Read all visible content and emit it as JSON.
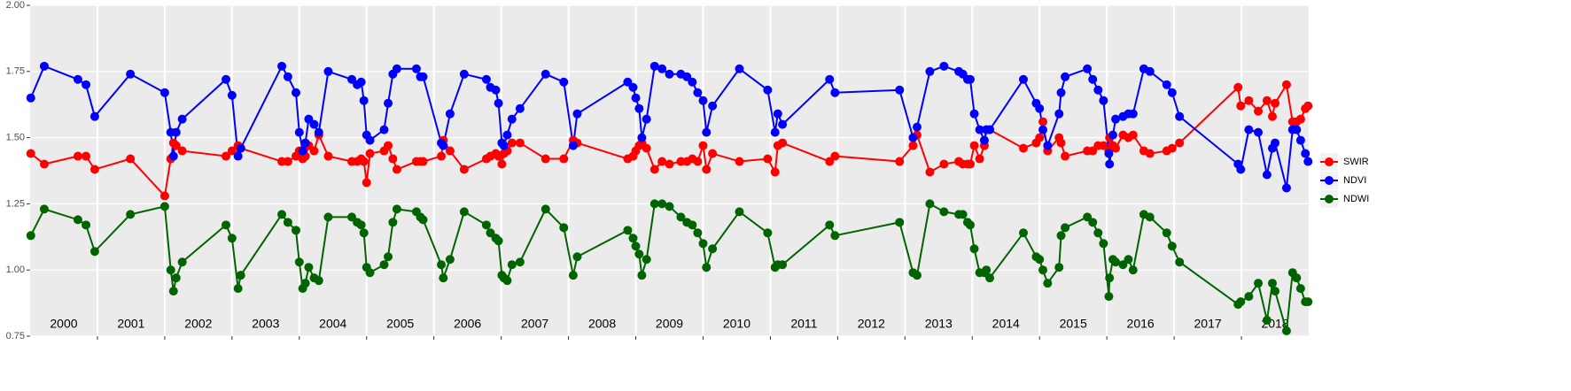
{
  "chart_data": {
    "type": "line",
    "x": [
      2000.01,
      2000.21,
      2000.71,
      2000.83,
      2000.96,
      2001.49,
      2002.0,
      2002.09,
      2002.13,
      2002.17,
      2002.26,
      2002.91,
      2003.0,
      2003.09,
      2003.13,
      2003.74,
      2003.83,
      2003.95,
      2004.0,
      2004.05,
      2004.09,
      2004.14,
      2004.22,
      2004.29,
      2004.43,
      2004.78,
      2004.86,
      2004.92,
      2004.96,
      2005.0,
      2005.05,
      2005.26,
      2005.32,
      2005.39,
      2005.45,
      2005.74,
      2005.8,
      2005.84,
      2006.11,
      2006.14,
      2006.24,
      2006.45,
      2006.78,
      2006.84,
      2006.92,
      2006.96,
      2007.01,
      2007.04,
      2007.09,
      2007.16,
      2007.28,
      2007.66,
      2007.93,
      2008.07,
      2008.13,
      2008.88,
      2008.96,
      2009.0,
      2009.05,
      2009.09,
      2009.16,
      2009.28,
      2009.39,
      2009.5,
      2009.67,
      2009.76,
      2009.84,
      2009.92,
      2010.0,
      2010.05,
      2010.14,
      2010.54,
      2010.96,
      2011.07,
      2011.11,
      2011.18,
      2011.88,
      2011.96,
      2012.92,
      2013.12,
      2013.18,
      2013.37,
      2013.58,
      2013.8,
      2013.86,
      2013.93,
      2013.97,
      2014.03,
      2014.11,
      2014.18,
      2014.21,
      2014.26,
      2014.76,
      2014.95,
      2015.0,
      2015.05,
      2015.12,
      2015.29,
      2015.32,
      2015.38,
      2015.71,
      2015.79,
      2015.87,
      2015.95,
      2016.03,
      2016.04,
      2016.09,
      2016.13,
      2016.24,
      2016.32,
      2016.39,
      2016.55,
      2016.64,
      2016.89,
      2016.97,
      2017.08,
      2017.95,
      2017.99,
      2018.11,
      2018.25,
      2018.38,
      2018.46,
      2018.5,
      2018.67,
      2018.76,
      2018.82,
      2018.88,
      2018.95,
      2018.99
    ],
    "series": [
      {
        "name": "SWIR",
        "color": "#ff0000",
        "values": [
          1.44,
          1.4,
          1.43,
          1.43,
          1.38,
          1.42,
          1.28,
          1.42,
          1.48,
          1.47,
          1.45,
          1.43,
          1.45,
          1.47,
          1.46,
          1.41,
          1.41,
          1.43,
          1.45,
          1.42,
          1.43,
          1.47,
          1.45,
          1.51,
          1.43,
          1.41,
          1.41,
          1.42,
          1.41,
          1.33,
          1.44,
          1.45,
          1.47,
          1.42,
          1.38,
          1.41,
          1.41,
          1.41,
          1.43,
          1.49,
          1.45,
          1.38,
          1.42,
          1.43,
          1.44,
          1.43,
          1.4,
          1.44,
          1.45,
          1.48,
          1.48,
          1.42,
          1.42,
          1.49,
          1.48,
          1.42,
          1.43,
          1.45,
          1.47,
          1.48,
          1.46,
          1.38,
          1.41,
          1.4,
          1.41,
          1.41,
          1.42,
          1.41,
          1.47,
          1.38,
          1.44,
          1.41,
          1.42,
          1.37,
          1.47,
          1.48,
          1.41,
          1.43,
          1.41,
          1.47,
          1.51,
          1.37,
          1.4,
          1.41,
          1.4,
          1.4,
          1.4,
          1.47,
          1.42,
          1.47,
          1.53,
          1.53,
          1.46,
          1.48,
          1.5,
          1.56,
          1.45,
          1.5,
          1.48,
          1.43,
          1.45,
          1.45,
          1.47,
          1.47,
          1.45,
          1.5,
          1.47,
          1.46,
          1.51,
          1.5,
          1.51,
          1.45,
          1.44,
          1.45,
          1.46,
          1.48,
          1.69,
          1.62,
          1.64,
          1.6,
          1.64,
          1.58,
          1.63,
          1.7,
          1.56,
          1.56,
          1.57,
          1.61,
          1.62
        ]
      },
      {
        "name": "NDVI",
        "color": "#0000ff",
        "values": [
          1.65,
          1.77,
          1.72,
          1.7,
          1.58,
          1.74,
          1.67,
          1.52,
          1.43,
          1.52,
          1.57,
          1.72,
          1.66,
          1.43,
          1.46,
          1.77,
          1.73,
          1.67,
          1.52,
          1.45,
          1.48,
          1.57,
          1.55,
          1.52,
          1.75,
          1.72,
          1.7,
          1.71,
          1.64,
          1.51,
          1.49,
          1.53,
          1.63,
          1.74,
          1.76,
          1.76,
          1.73,
          1.73,
          1.48,
          1.47,
          1.59,
          1.74,
          1.72,
          1.69,
          1.68,
          1.63,
          1.48,
          1.47,
          1.51,
          1.57,
          1.61,
          1.74,
          1.71,
          1.47,
          1.59,
          1.71,
          1.69,
          1.65,
          1.61,
          1.5,
          1.57,
          1.77,
          1.76,
          1.74,
          1.74,
          1.73,
          1.71,
          1.67,
          1.64,
          1.52,
          1.62,
          1.76,
          1.68,
          1.52,
          1.59,
          1.55,
          1.72,
          1.67,
          1.68,
          1.5,
          1.54,
          1.75,
          1.77,
          1.75,
          1.74,
          1.72,
          1.72,
          1.59,
          1.53,
          1.49,
          1.53,
          1.53,
          1.72,
          1.63,
          1.61,
          1.53,
          1.47,
          1.59,
          1.67,
          1.73,
          1.76,
          1.72,
          1.68,
          1.64,
          1.44,
          1.4,
          1.51,
          1.57,
          1.58,
          1.59,
          1.59,
          1.76,
          1.75,
          1.7,
          1.67,
          1.58,
          1.4,
          1.38,
          1.53,
          1.52,
          1.36,
          1.46,
          1.48,
          1.31,
          1.53,
          1.53,
          1.49,
          1.44,
          1.41
        ]
      },
      {
        "name": "NDWI",
        "color": "#006400",
        "values": [
          1.13,
          1.23,
          1.19,
          1.17,
          1.07,
          1.21,
          1.24,
          1.0,
          0.92,
          0.97,
          1.03,
          1.17,
          1.12,
          0.93,
          0.98,
          1.21,
          1.18,
          1.15,
          1.03,
          0.93,
          0.95,
          1.01,
          0.97,
          0.96,
          1.2,
          1.2,
          1.18,
          1.17,
          1.14,
          1.01,
          0.99,
          1.02,
          1.05,
          1.18,
          1.23,
          1.22,
          1.2,
          1.19,
          1.02,
          0.97,
          1.04,
          1.22,
          1.17,
          1.14,
          1.12,
          1.11,
          0.98,
          0.97,
          0.96,
          1.02,
          1.03,
          1.23,
          1.16,
          0.98,
          1.05,
          1.15,
          1.12,
          1.09,
          1.06,
          0.98,
          1.04,
          1.25,
          1.25,
          1.24,
          1.2,
          1.18,
          1.17,
          1.14,
          1.1,
          1.01,
          1.08,
          1.22,
          1.14,
          1.01,
          1.02,
          1.02,
          1.17,
          1.13,
          1.18,
          0.99,
          0.98,
          1.25,
          1.22,
          1.21,
          1.21,
          1.18,
          1.17,
          1.08,
          0.99,
          0.99,
          1.0,
          0.97,
          1.14,
          1.05,
          1.04,
          1.0,
          0.95,
          1.01,
          1.13,
          1.16,
          1.2,
          1.18,
          1.14,
          1.1,
          0.9,
          0.97,
          1.04,
          1.03,
          1.02,
          1.04,
          1.0,
          1.21,
          1.2,
          1.14,
          1.09,
          1.03,
          0.87,
          0.88,
          0.9,
          0.95,
          0.81,
          0.95,
          0.92,
          0.77,
          0.99,
          0.97,
          0.93,
          0.88,
          0.88
        ]
      }
    ],
    "xlim": [
      2000,
      2019
    ],
    "xticks": [
      2001,
      2002,
      2003,
      2004,
      2005,
      2006,
      2007,
      2008,
      2009,
      2010,
      2011,
      2012,
      2013,
      2014,
      2015,
      2016,
      2017,
      2018
    ],
    "year_labels": [
      2000,
      2001,
      2002,
      2003,
      2004,
      2005,
      2006,
      2007,
      2008,
      2009,
      2010,
      2011,
      2012,
      2013,
      2014,
      2015,
      2016,
      2017,
      2018
    ],
    "ylim": [
      0.75,
      2.0
    ],
    "yticks": [
      {
        "value": 0.75,
        "label": "0.75"
      },
      {
        "value": 1,
        "label": "1.00"
      },
      {
        "value": 1.25,
        "label": "1.25"
      },
      {
        "value": 1.5,
        "label": "1.50"
      },
      {
        "value": 1.75,
        "label": "1.75"
      },
      {
        "value": 2,
        "label": "2.00"
      }
    ],
    "grid": true,
    "legend": "right"
  }
}
